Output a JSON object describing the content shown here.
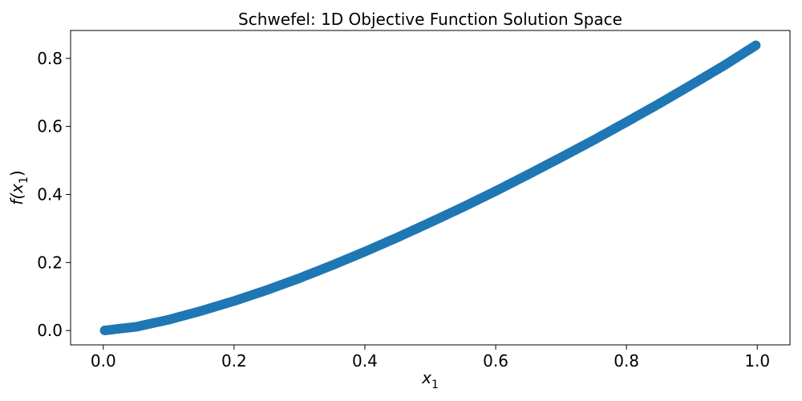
{
  "chart_data": {
    "type": "scatter",
    "title": "Schwefel: 1D Objective Function Solution Space",
    "xlabel": {
      "base": "x",
      "sub": "1"
    },
    "ylabel": {
      "prefix": "f(",
      "base": "x",
      "sub": "1",
      "suffix": ")"
    },
    "xlim": [
      -0.05,
      1.05
    ],
    "ylim": [
      -0.042,
      0.882
    ],
    "xticks": [
      0.0,
      0.2,
      0.4,
      0.6,
      0.8,
      1.0
    ],
    "xtick_labels": [
      "0.0",
      "0.2",
      "0.4",
      "0.6",
      "0.8",
      "1.0"
    ],
    "yticks": [
      0.0,
      0.2,
      0.4,
      0.6,
      0.8
    ],
    "ytick_labels": [
      "0.0",
      "0.2",
      "0.4",
      "0.6",
      "0.8"
    ],
    "grid": false,
    "marker_color": "#1f77b4",
    "x": [
      0.0,
      0.05,
      0.1,
      0.15,
      0.2,
      0.25,
      0.3,
      0.35,
      0.4,
      0.45,
      0.5,
      0.55,
      0.6,
      0.65,
      0.7,
      0.75,
      0.8,
      0.85,
      0.9,
      0.95,
      1.0
    ],
    "y": [
      0.0,
      0.011,
      0.032,
      0.058,
      0.087,
      0.119,
      0.154,
      0.192,
      0.232,
      0.274,
      0.318,
      0.363,
      0.41,
      0.459,
      0.509,
      0.56,
      0.613,
      0.667,
      0.723,
      0.78,
      0.841
    ]
  }
}
